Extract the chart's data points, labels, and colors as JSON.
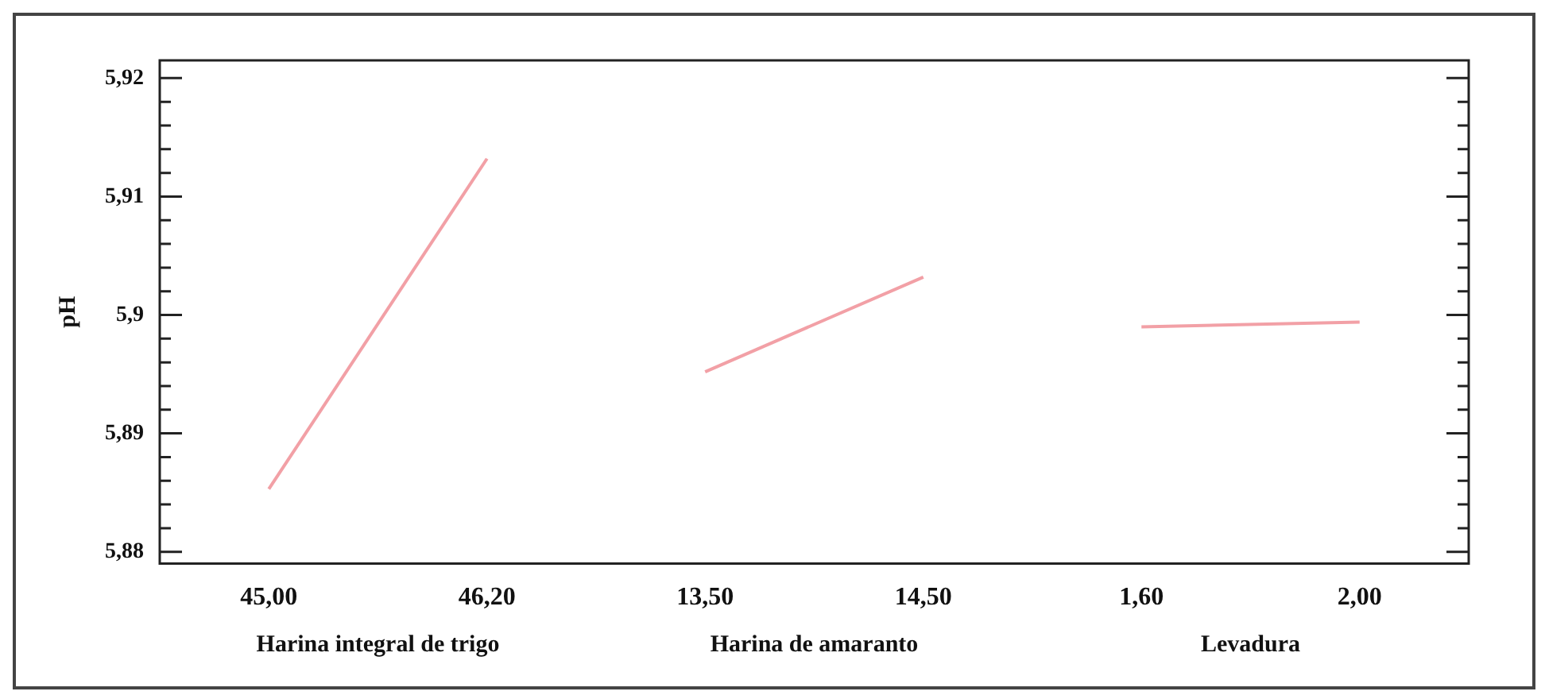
{
  "chart_data": {
    "type": "line",
    "ylabel": "pH",
    "categories": [
      "45,00",
      "46,20",
      "13,50",
      "14,50",
      "1,60",
      "2,00"
    ],
    "series": [
      {
        "color": "#f2a0a6",
        "values": [
          5.8853,
          5.9132,
          null,
          null,
          null,
          null
        ]
      },
      {
        "color": "#f2a0a6",
        "values": [
          null,
          null,
          5.8952,
          5.9032,
          null,
          null
        ]
      },
      {
        "color": "#f2a0a6",
        "values": [
          null,
          null,
          null,
          null,
          5.899,
          5.8994
        ]
      }
    ],
    "ylim": [
      5.879,
      5.9215
    ],
    "yticks": [
      {
        "value": 5.88,
        "label": "5,88"
      },
      {
        "value": 5.882,
        "label": null
      },
      {
        "value": 5.884,
        "label": null
      },
      {
        "value": 5.886,
        "label": null
      },
      {
        "value": 5.888,
        "label": null
      },
      {
        "value": 5.89,
        "label": "5,89"
      },
      {
        "value": 5.892,
        "label": null
      },
      {
        "value": 5.894,
        "label": null
      },
      {
        "value": 5.896,
        "label": null
      },
      {
        "value": 5.898,
        "label": null
      },
      {
        "value": 5.9,
        "label": "5,9"
      },
      {
        "value": 5.902,
        "label": null
      },
      {
        "value": 5.904,
        "label": null
      },
      {
        "value": 5.906,
        "label": null
      },
      {
        "value": 5.908,
        "label": null
      },
      {
        "value": 5.91,
        "label": "5,91"
      },
      {
        "value": 5.912,
        "label": null
      },
      {
        "value": 5.914,
        "label": null
      },
      {
        "value": 5.916,
        "label": null
      },
      {
        "value": 5.918,
        "label": null
      },
      {
        "value": 5.92,
        "label": "5,92"
      }
    ],
    "annotations": [
      "Harina integral de trigo",
      "Harina de amaranto",
      "Levadura"
    ],
    "grid": false,
    "legend": false,
    "marker": "none",
    "line_style": "solid"
  }
}
